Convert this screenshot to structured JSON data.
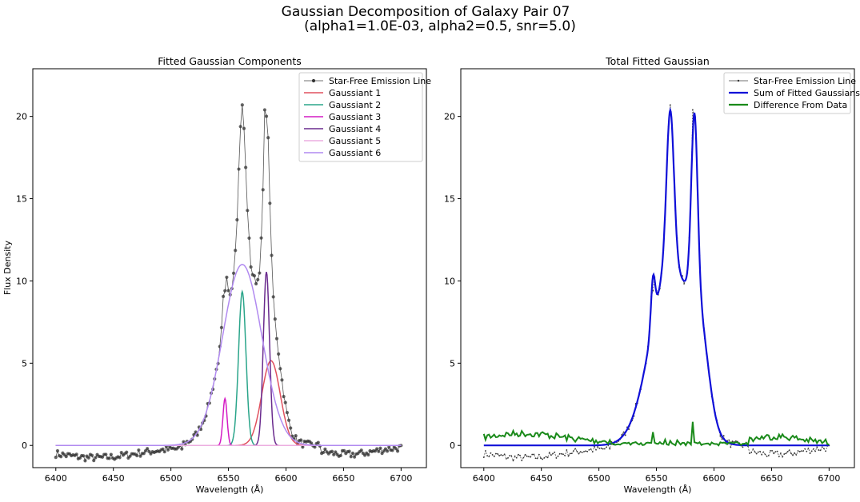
{
  "figure": {
    "title_line1": "Gaussian Decomposition of Galaxy Pair 07",
    "title_line2": "(alpha1=1.0E-03, alpha2=0.5, snr=5.0)"
  },
  "chart_data": [
    {
      "type": "line",
      "title": "Fitted Gaussian Components",
      "xlabel": "Wavelength (Å)",
      "ylabel": "Flux Density",
      "xlim": [
        6380,
        6722
      ],
      "ylim": [
        -1.35,
        22.9
      ],
      "xticks": [
        6400,
        6450,
        6500,
        6550,
        6600,
        6650,
        6700
      ],
      "yticks": [
        0,
        5,
        10,
        15,
        20
      ],
      "legend_position": "top-right",
      "series": [
        {
          "name": "Star-Free Emission Line",
          "color": "#404040",
          "style": "dots-line"
        },
        {
          "name": "Gaussiant 1",
          "color": "#e0505e",
          "amplitude": 5.15,
          "center": 6587,
          "sigma": 8
        },
        {
          "name": "Gaussiant 2",
          "color": "#2aa58a",
          "amplitude": 9.35,
          "center": 6562,
          "sigma": 3.2
        },
        {
          "name": "Gaussiant 3",
          "color": "#d41cc4",
          "amplitude": 2.85,
          "center": 6547,
          "sigma": 1.8
        },
        {
          "name": "Gaussiant 4",
          "color": "#6a2b8e",
          "amplitude": 10.55,
          "center": 6583,
          "sigma": 2.7
        },
        {
          "name": "Gaussiant 5",
          "color": "#ecaee0",
          "amplitude": 0,
          "center": 6560,
          "sigma": 5
        },
        {
          "name": "Gaussiant 6",
          "color": "#b18af0",
          "amplitude": 11.0,
          "center": 6562,
          "sigma": 17
        }
      ],
      "data_peaks": [
        {
          "x": 6562,
          "y": 20.7
        },
        {
          "x": 6582,
          "y": 20.4
        },
        {
          "x": 6547,
          "y": 9.4
        }
      ]
    },
    {
      "type": "line",
      "title": "Total Fitted Gaussian",
      "xlabel": "Wavelength (Å)",
      "ylabel": "",
      "xlim": [
        6380,
        6722
      ],
      "ylim": [
        -1.35,
        22.9
      ],
      "xticks": [
        6400,
        6450,
        6500,
        6550,
        6600,
        6650,
        6700
      ],
      "yticks": [
        0,
        5,
        10,
        15,
        20
      ],
      "legend_position": "top-right",
      "series": [
        {
          "name": "Star-Free Emission Line",
          "color": "#404040",
          "style": "dots-line"
        },
        {
          "name": "Sum of Fitted Gaussians",
          "color": "#1010d8"
        },
        {
          "name": "Difference From Data",
          "color": "#1a8a1a"
        }
      ]
    }
  ]
}
